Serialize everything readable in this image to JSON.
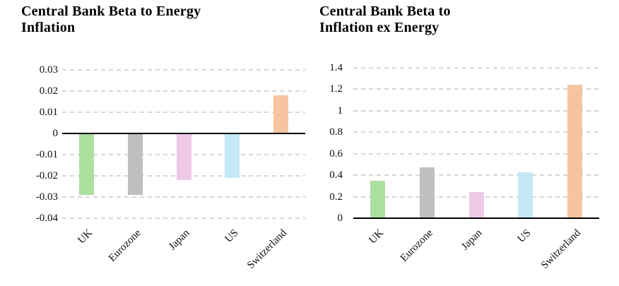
{
  "figure": {
    "background_color": "#ffffff",
    "text_color": "#000000",
    "gridline_color": "#d7d7d7",
    "axis_color": "#000000"
  },
  "chart_data": [
    {
      "type": "bar",
      "title": "Central Bank Beta to Energy\nInflation",
      "categories": [
        "UK",
        "Eurozone",
        "Japan",
        "US",
        "Switzerland"
      ],
      "values": [
        -0.029,
        -0.029,
        -0.022,
        -0.021,
        0.018
      ],
      "bar_colors": [
        "#ace0a0",
        "#bfbfbf",
        "#eec9e8",
        "#c5e8f7",
        "#f6c49e"
      ],
      "ylim": [
        -0.04,
        0.03
      ],
      "ytick_labels": [
        "0.03",
        "0.02",
        "0.01",
        "0",
        "-0.01",
        "-0.02",
        "-0.03",
        "-0.04"
      ],
      "xlabel": "",
      "ylabel": "",
      "grid": "horizontal-dashed",
      "legend": "none",
      "xtick_rotation_deg": 45
    },
    {
      "type": "bar",
      "title": "Central Bank Beta to\nInflation ex Energy",
      "categories": [
        "UK",
        "Eurozone",
        "Japan",
        "US",
        "Switzerland"
      ],
      "values": [
        0.35,
        0.47,
        0.24,
        0.43,
        1.24
      ],
      "bar_colors": [
        "#ace0a0",
        "#bfbfbf",
        "#eec9e8",
        "#c5e8f7",
        "#f6c49e"
      ],
      "ylim": [
        0,
        1.4
      ],
      "ytick_labels": [
        "1.4",
        "1.2",
        "1",
        "0.8",
        "0.6",
        "0.4",
        "0.2",
        "0"
      ],
      "xlabel": "",
      "ylabel": "",
      "grid": "horizontal-dashed",
      "legend": "none",
      "xtick_rotation_deg": 45
    }
  ]
}
